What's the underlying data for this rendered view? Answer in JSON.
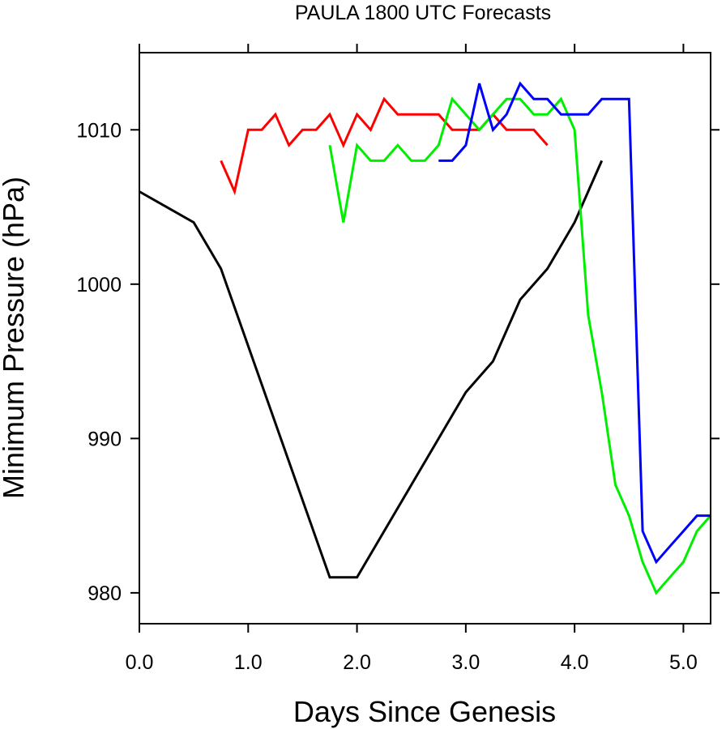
{
  "chart_data": {
    "type": "line",
    "title": "PAULA 1800 UTC Forecasts",
    "xlabel": "Days Since Genesis",
    "ylabel": "Minimum Pressure (hPa)",
    "xlim": [
      0,
      5.25
    ],
    "ylim": [
      978,
      1015
    ],
    "xticks": [
      0,
      1,
      2,
      3,
      4,
      5
    ],
    "xtick_labels": [
      "0.0",
      "1.0",
      "2.0",
      "3.0",
      "4.0",
      "5.0"
    ],
    "yticks": [
      980,
      990,
      1000,
      1010
    ],
    "ytick_labels": [
      "980",
      "990",
      "1000",
      "1010"
    ],
    "grid": false,
    "legend": "none",
    "series": [
      {
        "color": "#000000",
        "x": [
          0,
          0.5,
          0.75,
          1.75,
          2.0,
          3.0,
          3.25,
          3.5,
          3.75,
          4.0,
          4.25
        ],
        "y": [
          1006,
          1004,
          1001,
          981,
          981,
          993,
          995,
          999,
          1001,
          1004,
          1008
        ]
      },
      {
        "color": "#ff0000",
        "x": [
          0.75,
          0.875,
          1.0,
          1.125,
          1.25,
          1.375,
          1.5,
          1.625,
          1.75,
          1.875,
          2.0,
          2.125,
          2.25,
          2.375,
          2.5,
          2.625,
          2.75,
          2.875,
          3.0,
          3.125,
          3.25,
          3.375,
          3.5,
          3.625,
          3.75
        ],
        "y": [
          1008,
          1006,
          1010,
          1010,
          1011,
          1009,
          1010,
          1010,
          1011,
          1009,
          1011,
          1010,
          1012,
          1011,
          1011,
          1011,
          1011,
          1010,
          1010,
          1010,
          1011,
          1010,
          1010,
          1010,
          1009
        ]
      },
      {
        "color": "#00ee00",
        "x": [
          1.75,
          1.875,
          2.0,
          2.125,
          2.25,
          2.375,
          2.5,
          2.625,
          2.75,
          2.875,
          3.0,
          3.125,
          3.25,
          3.375,
          3.5,
          3.625,
          3.75,
          3.875,
          4.0,
          4.125,
          4.25,
          4.375,
          4.5,
          4.625,
          4.75,
          4.875,
          5.0,
          5.125,
          5.25
        ],
        "y": [
          1009,
          1004,
          1009,
          1008,
          1008,
          1009,
          1008,
          1008,
          1009,
          1012,
          1011,
          1010,
          1011,
          1012,
          1012,
          1011,
          1011,
          1012,
          1010,
          998,
          993,
          987,
          985,
          982,
          980,
          981,
          982,
          984,
          985
        ]
      },
      {
        "color": "#0000ff",
        "x": [
          2.75,
          2.875,
          3.0,
          3.125,
          3.25,
          3.375,
          3.5,
          3.625,
          3.75,
          3.875,
          4.0,
          4.125,
          4.25,
          4.375,
          4.5,
          4.625,
          4.75,
          4.875,
          5.0,
          5.125,
          5.25
        ],
        "y": [
          1008,
          1008,
          1009,
          1013,
          1010,
          1011,
          1013,
          1012,
          1012,
          1011,
          1011,
          1011,
          1012,
          1012,
          1012,
          984,
          982,
          983,
          984,
          985,
          985
        ]
      }
    ]
  }
}
